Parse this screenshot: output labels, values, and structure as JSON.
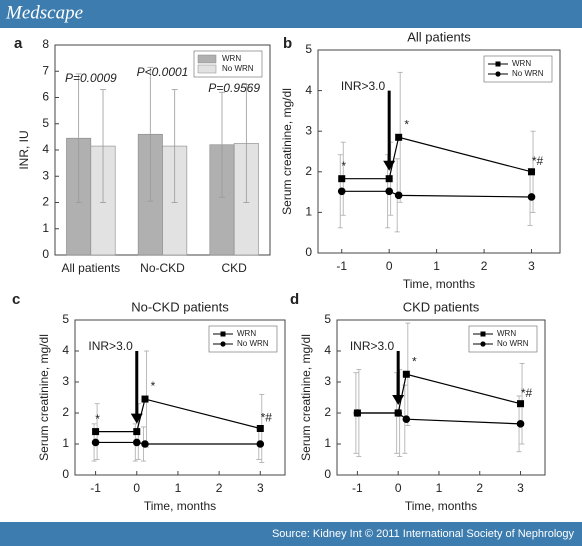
{
  "header": {
    "brand": "Medscape"
  },
  "footer": {
    "source": "Source: Kidney Int © 2011 International Society of Nephrology"
  },
  "chart_data": [
    {
      "type": "bar",
      "label": "a",
      "y_label": "INR, IU",
      "categories": [
        "All patients",
        "No-CKD",
        "CKD"
      ],
      "series": [
        {
          "name": "WRN",
          "color": "#b0b0b0",
          "values": [
            4.45,
            4.6,
            4.2
          ],
          "errors": [
            2.45,
            2.55,
            2.0
          ]
        },
        {
          "name": "No WRN",
          "color": "#e2e2e2",
          "values": [
            4.15,
            4.15,
            4.25
          ],
          "errors": [
            2.15,
            2.15,
            2.25
          ]
        }
      ],
      "annotations": [
        "P=0.0009",
        "P<0.0001",
        "P=0.9569"
      ],
      "ylim": [
        0,
        8
      ],
      "yticks": [
        0,
        1,
        2,
        3,
        4,
        5,
        6,
        7,
        8
      ],
      "legend": "top-right"
    },
    {
      "type": "line",
      "label": "b",
      "title": "All patients",
      "x_label": "Time, months",
      "y_label": "Serum creatinine, mg/dl",
      "x": [
        -1,
        0,
        0.2,
        3
      ],
      "series": [
        {
          "name": "WRN",
          "color": "#000000",
          "marker": "square",
          "values": [
            1.83,
            1.83,
            2.85,
            2.0
          ],
          "errors": [
            0.9,
            0.9,
            1.6,
            1.0
          ]
        },
        {
          "name": "No WRN",
          "color": "#000000",
          "marker": "circle",
          "values": [
            1.52,
            1.52,
            1.42,
            1.38
          ],
          "errors": [
            0.9,
            0.9,
            0.9,
            0.7
          ]
        }
      ],
      "annotations": [
        "INR>3.0",
        "*",
        "*",
        "*#"
      ],
      "xlim": [
        -1.5,
        3.6
      ],
      "xticks": [
        -1,
        0,
        1,
        2,
        3
      ],
      "ylim": [
        0,
        5
      ],
      "yticks": [
        0,
        1,
        2,
        3,
        4,
        5
      ],
      "legend": "top-right"
    },
    {
      "type": "line",
      "label": "c",
      "title": "No-CKD patients",
      "x_label": "Time, months",
      "y_label": "Serum creatinine, mg/dl",
      "x": [
        -1,
        0,
        0.2,
        3
      ],
      "series": [
        {
          "name": "WRN",
          "color": "#000000",
          "marker": "square",
          "values": [
            1.4,
            1.4,
            2.45,
            1.5
          ],
          "errors": [
            0.9,
            0.9,
            1.55,
            1.1
          ]
        },
        {
          "name": "No WRN",
          "color": "#000000",
          "marker": "circle",
          "values": [
            1.05,
            1.05,
            1.0,
            1.0
          ],
          "errors": [
            0.6,
            0.6,
            0.55,
            0.5
          ]
        }
      ],
      "annotations": [
        "INR>3.0",
        "*",
        "*",
        "*#"
      ],
      "xlim": [
        -1.5,
        3.6
      ],
      "xticks": [
        -1,
        0,
        1,
        2,
        3
      ],
      "ylim": [
        0,
        5
      ],
      "yticks": [
        0,
        1,
        2,
        3,
        4,
        5
      ],
      "legend": "top-right"
    },
    {
      "type": "line",
      "label": "d",
      "title": "CKD patients",
      "x_label": "Time, months",
      "y_label": "Serum creatinine, mg/dl",
      "x": [
        -1,
        0,
        0.2,
        3
      ],
      "series": [
        {
          "name": "WRN",
          "color": "#000000",
          "marker": "square",
          "values": [
            2.0,
            2.0,
            3.25,
            2.3
          ],
          "errors": [
            1.4,
            1.4,
            1.65,
            1.3
          ]
        },
        {
          "name": "No WRN",
          "color": "#000000",
          "marker": "circle",
          "values": [
            2.0,
            2.0,
            1.8,
            1.65
          ],
          "errors": [
            1.3,
            1.3,
            1.1,
            0.9
          ]
        }
      ],
      "annotations": [
        "INR>3.0",
        "*",
        "*#"
      ],
      "xlim": [
        -1.5,
        3.6
      ],
      "xticks": [
        -1,
        0,
        1,
        2,
        3
      ],
      "ylim": [
        0,
        5
      ],
      "yticks": [
        0,
        1,
        2,
        3,
        4,
        5
      ],
      "legend": "top-right"
    }
  ]
}
